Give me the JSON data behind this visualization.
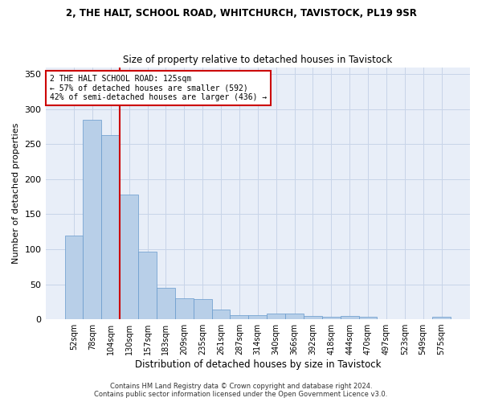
{
  "title1": "2, THE HALT, SCHOOL ROAD, WHITCHURCH, TAVISTOCK, PL19 9SR",
  "title2": "Size of property relative to detached houses in Tavistock",
  "xlabel": "Distribution of detached houses by size in Tavistock",
  "ylabel": "Number of detached properties",
  "footer1": "Contains HM Land Registry data © Crown copyright and database right 2024.",
  "footer2": "Contains public sector information licensed under the Open Government Licence v3.0.",
  "annotation_line1": "2 THE HALT SCHOOL ROAD: 125sqm",
  "annotation_line2": "← 57% of detached houses are smaller (592)",
  "annotation_line3": "42% of semi-detached houses are larger (436) →",
  "bar_color": "#b8cfe8",
  "bar_edge_color": "#6699cc",
  "grid_color": "#c8d4e8",
  "background_color": "#e8eef8",
  "vline_color": "#cc0000",
  "categories": [
    "52sqm",
    "78sqm",
    "104sqm",
    "130sqm",
    "157sqm",
    "183sqm",
    "209sqm",
    "235sqm",
    "261sqm",
    "287sqm",
    "314sqm",
    "340sqm",
    "366sqm",
    "392sqm",
    "418sqm",
    "444sqm",
    "470sqm",
    "497sqm",
    "523sqm",
    "549sqm",
    "575sqm"
  ],
  "values": [
    120,
    285,
    263,
    178,
    96,
    45,
    30,
    29,
    14,
    6,
    6,
    8,
    8,
    5,
    4,
    5,
    4,
    0,
    0,
    0,
    3
  ],
  "ylim": [
    0,
    360
  ],
  "yticks": [
    0,
    50,
    100,
    150,
    200,
    250,
    300,
    350
  ],
  "vline_position": 2.5,
  "title1_fontsize": 8.5,
  "title2_fontsize": 8.5,
  "ylabel_fontsize": 8,
  "xlabel_fontsize": 8.5,
  "tick_fontsize": 7,
  "annot_fontsize": 7,
  "footer_fontsize": 6
}
